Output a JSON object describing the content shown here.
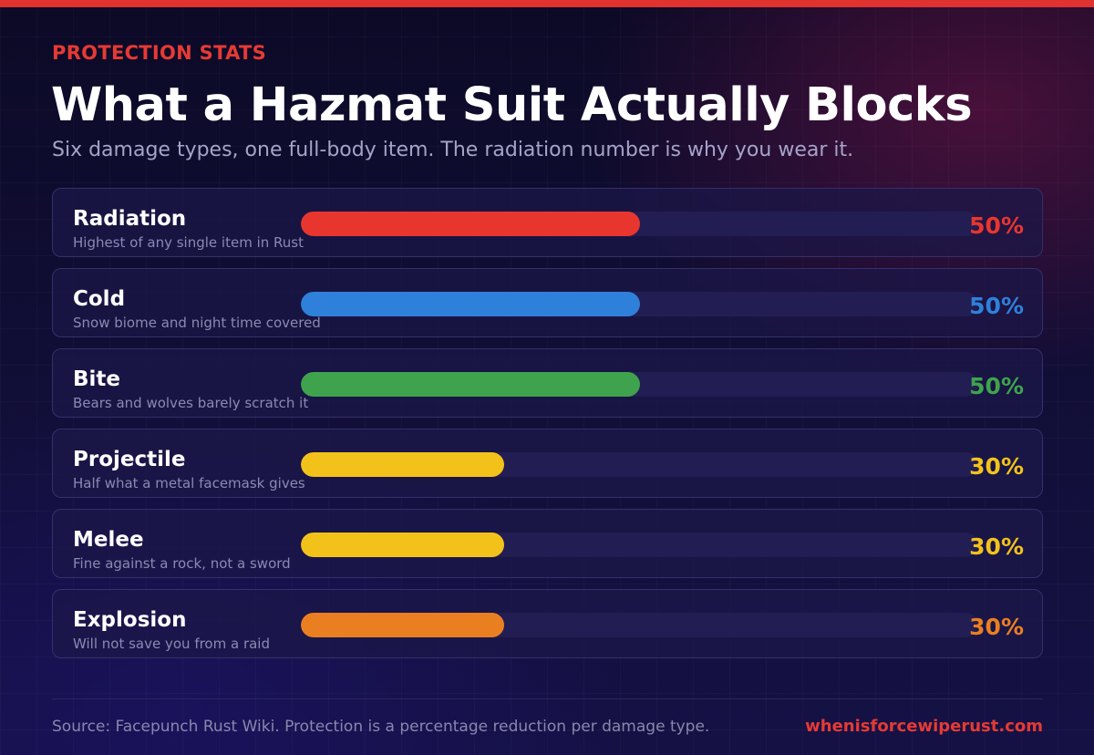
{
  "header": {
    "eyebrow": "PROTECTION STATS",
    "title": "What a Hazmat Suit Actually Blocks",
    "subtitle": "Six damage types, one full-body item. The radiation number is why you wear it."
  },
  "colors": {
    "accent": "#e0322f",
    "radiation": "#e8362f",
    "cold": "#2f80db",
    "bite": "#3fa34d",
    "projectile": "#f2c21b",
    "melee": "#f2c21b",
    "explosion": "#ea7f22"
  },
  "chart_data": {
    "type": "bar",
    "orientation": "horizontal",
    "xlim": [
      0,
      100
    ],
    "unit": "%",
    "rows": [
      {
        "name": "Radiation",
        "note": "Highest of any single item in Rust",
        "value": 50,
        "label": "50%",
        "color": "#e8362f"
      },
      {
        "name": "Cold",
        "note": "Snow biome and night time covered",
        "value": 50,
        "label": "50%",
        "color": "#2f80db"
      },
      {
        "name": "Bite",
        "note": "Bears and wolves barely scratch it",
        "value": 50,
        "label": "50%",
        "color": "#3fa34d"
      },
      {
        "name": "Projectile",
        "note": "Half what a metal facemask gives",
        "value": 30,
        "label": "30%",
        "color": "#f2c21b"
      },
      {
        "name": "Melee",
        "note": "Fine against a rock, not a sword",
        "value": 30,
        "label": "30%",
        "color": "#f2c21b"
      },
      {
        "name": "Explosion",
        "note": "Will not save you from a raid",
        "value": 30,
        "label": "30%",
        "color": "#ea7f22"
      }
    ]
  },
  "footer": {
    "source": "Source: Facepunch Rust Wiki. Protection is a percentage reduction per damage type.",
    "site": "whenisforcewiperust.com"
  }
}
